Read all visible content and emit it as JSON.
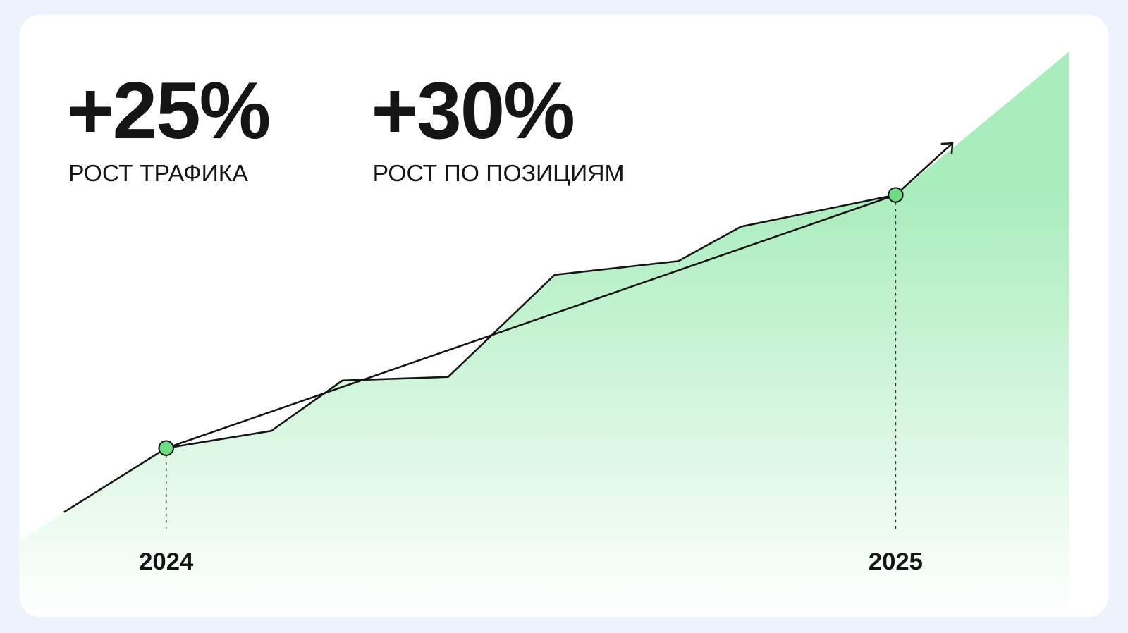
{
  "stats": [
    {
      "value": "+25%",
      "label": "РОСТ ТРАФИКА"
    },
    {
      "value": "+30%",
      "label": "РОСТ ПО ПОЗИЦИЯМ"
    }
  ],
  "timeline": {
    "start": "2024",
    "end": "2025"
  }
}
